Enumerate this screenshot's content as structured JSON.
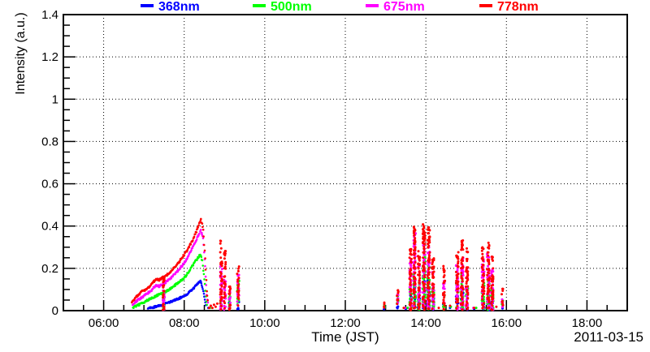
{
  "chart_data": {
    "type": "scatter",
    "title": "",
    "xlabel": "Time (JST)",
    "ylabel": "Intensity (a.u.)",
    "date_label": "2011-03-15",
    "background_color": "#ffffff",
    "axis_color": "#000000",
    "grid": {
      "style": "dotted",
      "color": "#000000",
      "x_lines_hours": [
        6,
        8,
        10,
        12,
        14,
        16,
        18
      ],
      "y_lines": [
        0.2,
        0.4,
        0.6,
        0.8,
        1.0,
        1.2
      ]
    },
    "x_axis": {
      "start_hour": 5,
      "end_hour": 19,
      "major_tick_hours": [
        6,
        8,
        10,
        12,
        14,
        16,
        18
      ],
      "major_tick_labels": [
        "06:00",
        "08:00",
        "10:00",
        "12:00",
        "14:00",
        "16:00",
        "18:00"
      ],
      "minor_tick_step_hours": 0.5
    },
    "y_axis": {
      "min": 0,
      "max": 1.4,
      "major_ticks": [
        0,
        0.2,
        0.4,
        0.6,
        0.8,
        1.0,
        1.2,
        1.4
      ],
      "major_tick_labels": [
        "0",
        "0.2",
        "0.4",
        "0.6",
        "0.8",
        "1",
        "1.2",
        "1.4"
      ],
      "minor_tick_step": 0.05
    },
    "legend": [
      {
        "label": "368nm",
        "color": "#0000ff"
      },
      {
        "label": "500nm",
        "color": "#00ff00"
      },
      {
        "label": "675nm",
        "color": "#ff00ff"
      },
      {
        "label": "778nm",
        "color": "#ff0000"
      }
    ],
    "series": [
      {
        "name": "368nm",
        "color": "#0000ff",
        "curves": [
          [
            [
              7.1,
              0.01
            ],
            [
              7.3,
              0.02
            ],
            [
              7.5,
              0.03
            ],
            [
              7.7,
              0.045
            ],
            [
              7.9,
              0.06
            ],
            [
              8.05,
              0.075
            ],
            [
              8.2,
              0.1
            ],
            [
              8.3,
              0.12
            ],
            [
              8.4,
              0.14
            ],
            [
              8.45,
              0.115
            ],
            [
              8.5,
              0.065
            ],
            [
              8.55,
              0.015
            ]
          ]
        ],
        "columns": [
          [
            7.49,
            0,
            0.03,
            0.04,
            6
          ],
          [
            9.13,
            0,
            0.04,
            0.03,
            5
          ],
          [
            9.34,
            0,
            0.05,
            0.04,
            6
          ],
          [
            12.97,
            0,
            0.015,
            0.02,
            3
          ],
          [
            13.3,
            0,
            0.03,
            0.03,
            4
          ],
          [
            13.62,
            0,
            0.08,
            0.05,
            12
          ],
          [
            13.72,
            0,
            0.12,
            0.05,
            16
          ],
          [
            13.83,
            0,
            0.08,
            0.05,
            12
          ],
          [
            13.95,
            0,
            0.17,
            0.06,
            22
          ],
          [
            14.07,
            0,
            0.14,
            0.06,
            18
          ],
          [
            14.18,
            0,
            0.07,
            0.05,
            10
          ],
          [
            14.45,
            0,
            0.04,
            0.04,
            6
          ],
          [
            14.78,
            0,
            0.07,
            0.06,
            10
          ],
          [
            14.9,
            0,
            0.1,
            0.06,
            14
          ],
          [
            15.02,
            0,
            0.06,
            0.05,
            8
          ],
          [
            15.42,
            0,
            0.06,
            0.06,
            8
          ],
          [
            15.55,
            0,
            0.08,
            0.06,
            10
          ],
          [
            15.65,
            0,
            0.05,
            0.05,
            7
          ],
          [
            15.9,
            0,
            0.02,
            0.03,
            3
          ]
        ],
        "points": [
          [
            8.6,
            0.01
          ],
          [
            13.5,
            0.005
          ],
          [
            14.6,
            0.01
          ],
          [
            15.2,
            0.005
          ]
        ]
      },
      {
        "name": "500nm",
        "color": "#00ff00",
        "curves": [
          [
            [
              6.73,
              0.015
            ],
            [
              6.9,
              0.03
            ],
            [
              7.1,
              0.05
            ],
            [
              7.3,
              0.07
            ],
            [
              7.5,
              0.085
            ],
            [
              7.7,
              0.11
            ],
            [
              7.9,
              0.14
            ],
            [
              8.0,
              0.155
            ],
            [
              8.1,
              0.18
            ],
            [
              8.2,
              0.21
            ],
            [
              8.3,
              0.24
            ],
            [
              8.4,
              0.265
            ],
            [
              8.45,
              0.235
            ],
            [
              8.5,
              0.15
            ],
            [
              8.55,
              0.045
            ],
            [
              8.58,
              0.01
            ]
          ]
        ],
        "columns": [
          [
            7.49,
            0,
            0.08,
            0.04,
            12
          ],
          [
            8.92,
            0,
            0.06,
            0.04,
            8
          ],
          [
            9.13,
            0,
            0.08,
            0.04,
            8
          ],
          [
            9.34,
            0.02,
            0.15,
            0.05,
            12
          ],
          [
            12.97,
            0,
            0.03,
            0.02,
            3
          ],
          [
            13.3,
            0.02,
            0.07,
            0.03,
            6
          ],
          [
            13.62,
            0,
            0.12,
            0.05,
            18
          ],
          [
            13.72,
            0,
            0.18,
            0.05,
            25
          ],
          [
            13.83,
            0,
            0.14,
            0.05,
            20
          ],
          [
            13.95,
            0,
            0.26,
            0.06,
            35
          ],
          [
            14.07,
            0,
            0.22,
            0.06,
            30
          ],
          [
            14.18,
            0,
            0.12,
            0.05,
            16
          ],
          [
            14.45,
            0,
            0.08,
            0.04,
            10
          ],
          [
            14.78,
            0,
            0.14,
            0.06,
            20
          ],
          [
            14.9,
            0,
            0.18,
            0.06,
            25
          ],
          [
            15.02,
            0,
            0.12,
            0.05,
            16
          ],
          [
            15.42,
            0,
            0.13,
            0.06,
            18
          ],
          [
            15.55,
            0,
            0.15,
            0.06,
            20
          ],
          [
            15.65,
            0,
            0.1,
            0.05,
            14
          ],
          [
            15.9,
            0.01,
            0.05,
            0.03,
            4
          ]
        ],
        "points": [
          [
            8.64,
            0.01
          ],
          [
            13.55,
            0.01
          ],
          [
            14.62,
            0.015
          ],
          [
            15.25,
            0.01
          ]
        ]
      },
      {
        "name": "675nm",
        "color": "#ff00ff",
        "curves": [
          [
            [
              6.72,
              0.03
            ],
            [
              6.85,
              0.05
            ],
            [
              7.0,
              0.07
            ],
            [
              7.15,
              0.09
            ],
            [
              7.3,
              0.12
            ],
            [
              7.38,
              0.115
            ],
            [
              7.45,
              0.125
            ],
            [
              7.55,
              0.135
            ],
            [
              7.7,
              0.16
            ],
            [
              7.85,
              0.19
            ],
            [
              8.0,
              0.225
            ],
            [
              8.1,
              0.255
            ],
            [
              8.2,
              0.295
            ],
            [
              8.3,
              0.335
            ],
            [
              8.38,
              0.365
            ],
            [
              8.42,
              0.38
            ],
            [
              8.47,
              0.34
            ],
            [
              8.52,
              0.21
            ],
            [
              8.56,
              0.07
            ],
            [
              8.6,
              0.02
            ]
          ]
        ],
        "columns": [
          [
            7.49,
            0,
            0.14,
            0.04,
            20
          ],
          [
            8.92,
            0,
            0.21,
            0.05,
            28
          ],
          [
            9.01,
            0,
            0.15,
            0.04,
            18
          ],
          [
            9.13,
            0,
            0.1,
            0.04,
            12
          ],
          [
            9.34,
            0.02,
            0.17,
            0.05,
            15
          ],
          [
            13.3,
            0.03,
            0.08,
            0.03,
            6
          ],
          [
            13.62,
            0,
            0.25,
            0.05,
            35
          ],
          [
            13.72,
            0,
            0.37,
            0.05,
            50
          ],
          [
            13.83,
            0,
            0.22,
            0.05,
            30
          ],
          [
            13.95,
            0,
            0.33,
            0.06,
            45
          ],
          [
            14.07,
            0,
            0.3,
            0.06,
            40
          ],
          [
            14.18,
            0,
            0.18,
            0.05,
            25
          ],
          [
            14.45,
            0,
            0.14,
            0.04,
            15
          ],
          [
            14.78,
            0,
            0.22,
            0.06,
            30
          ],
          [
            14.9,
            0,
            0.25,
            0.06,
            35
          ],
          [
            15.02,
            0,
            0.2,
            0.05,
            28
          ],
          [
            15.42,
            0,
            0.24,
            0.06,
            32
          ],
          [
            15.55,
            0,
            0.27,
            0.06,
            36
          ],
          [
            15.65,
            0,
            0.2,
            0.05,
            28
          ],
          [
            15.9,
            0.01,
            0.05,
            0.03,
            4
          ]
        ],
        "points": [
          [
            8.66,
            0.02
          ],
          [
            13.48,
            0.01
          ],
          [
            15.18,
            0.01
          ]
        ]
      },
      {
        "name": "778nm",
        "color": "#ff0000",
        "curves": [
          [
            [
              6.7,
              0.04
            ],
            [
              6.8,
              0.065
            ],
            [
              6.95,
              0.09
            ],
            [
              7.1,
              0.105
            ],
            [
              7.25,
              0.14
            ],
            [
              7.32,
              0.15
            ],
            [
              7.38,
              0.145
            ],
            [
              7.45,
              0.155
            ],
            [
              7.55,
              0.165
            ],
            [
              7.7,
              0.19
            ],
            [
              7.85,
              0.225
            ],
            [
              8.0,
              0.265
            ],
            [
              8.1,
              0.295
            ],
            [
              8.2,
              0.33
            ],
            [
              8.3,
              0.375
            ],
            [
              8.38,
              0.415
            ],
            [
              8.42,
              0.43
            ],
            [
              8.47,
              0.385
            ],
            [
              8.52,
              0.245
            ],
            [
              8.56,
              0.095
            ],
            [
              8.6,
              0.025
            ]
          ]
        ],
        "columns": [
          [
            7.49,
            0,
            0.16,
            0.04,
            25
          ],
          [
            8.92,
            0,
            0.33,
            0.05,
            40
          ],
          [
            9.01,
            0,
            0.28,
            0.04,
            30
          ],
          [
            9.13,
            0,
            0.12,
            0.04,
            15
          ],
          [
            9.34,
            0.02,
            0.22,
            0.05,
            20
          ],
          [
            12.97,
            0.01,
            0.04,
            0.02,
            4
          ],
          [
            13.3,
            0.02,
            0.1,
            0.04,
            10
          ],
          [
            13.62,
            0,
            0.3,
            0.05,
            45
          ],
          [
            13.72,
            0,
            0.4,
            0.05,
            60
          ],
          [
            13.83,
            0,
            0.28,
            0.05,
            40
          ],
          [
            13.95,
            0,
            0.42,
            0.06,
            65
          ],
          [
            14.07,
            0,
            0.4,
            0.06,
            60
          ],
          [
            14.18,
            0,
            0.25,
            0.05,
            35
          ],
          [
            14.45,
            0,
            0.21,
            0.05,
            25
          ],
          [
            14.78,
            0,
            0.28,
            0.06,
            40
          ],
          [
            14.9,
            0,
            0.33,
            0.06,
            50
          ],
          [
            15.02,
            0,
            0.3,
            0.05,
            40
          ],
          [
            15.42,
            0,
            0.3,
            0.06,
            40
          ],
          [
            15.55,
            0,
            0.32,
            0.06,
            45
          ],
          [
            15.65,
            0,
            0.26,
            0.05,
            35
          ],
          [
            15.9,
            0.02,
            0.1,
            0.04,
            8
          ]
        ],
        "points": [
          [
            8.62,
            0.01
          ],
          [
            8.66,
            0.02
          ],
          [
            8.7,
            0.01
          ],
          [
            8.74,
            0.025
          ],
          [
            8.78,
            0.015
          ],
          [
            8.82,
            0.03
          ],
          [
            13.45,
            0.01
          ],
          [
            14.32,
            0.01
          ],
          [
            14.6,
            0.02
          ],
          [
            15.2,
            0.01
          ],
          [
            15.75,
            0.015
          ]
        ]
      }
    ]
  }
}
